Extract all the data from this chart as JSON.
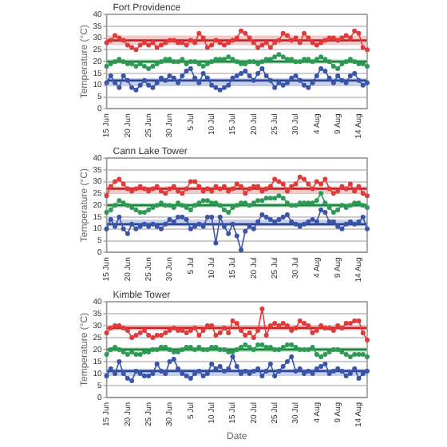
{
  "chart_data": [
    {
      "type": "line",
      "title": "Fort Providence",
      "ylabel": "Temperature (°C)",
      "ylim": [
        0,
        40
      ],
      "yticks": [
        0,
        5,
        10,
        15,
        20,
        25,
        30,
        35,
        40
      ],
      "grid": "y",
      "marker": "circle",
      "legend": false,
      "categories": [
        "15 Jun",
        null,
        null,
        null,
        null,
        "20 Jun",
        null,
        null,
        null,
        null,
        "25 Jun",
        null,
        null,
        null,
        null,
        "30 Jun",
        null,
        null,
        null,
        null,
        "5 Jul",
        null,
        null,
        null,
        null,
        "10 Jul",
        null,
        null,
        null,
        null,
        "15 Jul",
        null,
        null,
        null,
        null,
        "20 Jul",
        null,
        null,
        null,
        null,
        "25 Jul",
        null,
        null,
        null,
        null,
        "30 Jul",
        null,
        null,
        null,
        null,
        "4 Aug",
        null,
        null,
        null,
        null,
        "9 Aug",
        null,
        null,
        null,
        null,
        "14 Aug",
        null,
        null
      ],
      "series": [
        {
          "color": "#e03a3a",
          "values": [
            28,
            29,
            31,
            30,
            29,
            27,
            26,
            25,
            27,
            28,
            27,
            28,
            26,
            27,
            28,
            29,
            29,
            28,
            28,
            27,
            29,
            28,
            32,
            30,
            26,
            27,
            29,
            28,
            27,
            28,
            29,
            30,
            33,
            32,
            30,
            28,
            26,
            27,
            28,
            26,
            28,
            29,
            32,
            31,
            29,
            30,
            28,
            32,
            30,
            28,
            27,
            28,
            29,
            30,
            30,
            29,
            30,
            31,
            30,
            33,
            32,
            26,
            25
          ]
        },
        {
          "color": "#2e9a55",
          "values": [
            18,
            19,
            20,
            21,
            20,
            19,
            19,
            18,
            19,
            18,
            17,
            18,
            19,
            20,
            21,
            21,
            20,
            20,
            21,
            19,
            20,
            20,
            19,
            18,
            19,
            20,
            21,
            21,
            21,
            22,
            21,
            20,
            19,
            19,
            20,
            20,
            19,
            20,
            21,
            21,
            22,
            23,
            22,
            21,
            21,
            20,
            20,
            21,
            21,
            20,
            21,
            22,
            21,
            20,
            18,
            17,
            19,
            20,
            21,
            20,
            19,
            19,
            18
          ]
        },
        {
          "color": "#3a55a8",
          "values": [
            11,
            14,
            11,
            9,
            14,
            12,
            9,
            8,
            10,
            12,
            10,
            9,
            11,
            13,
            12,
            14,
            13,
            11,
            14,
            16,
            17,
            13,
            11,
            15,
            13,
            10,
            9,
            8,
            9,
            10,
            13,
            14,
            15,
            16,
            14,
            12,
            15,
            17,
            14,
            12,
            9,
            11,
            10,
            11,
            13,
            14,
            12,
            10,
            9,
            11,
            14,
            17,
            16,
            13,
            11,
            14,
            12,
            11,
            14,
            15,
            12,
            10,
            11
          ]
        }
      ],
      "ref_lines": [
        {
          "axis": "y",
          "value": 29,
          "color": "#d02020"
        },
        {
          "axis": "y",
          "value": 20,
          "color": "#1f8040"
        },
        {
          "axis": "y",
          "value": 12,
          "color": "#2a4595"
        }
      ],
      "bands": [
        {
          "axis": "y",
          "from": 27,
          "to": 31,
          "color": "#f4c8c8"
        },
        {
          "axis": "y",
          "from": 19,
          "to": 21,
          "color": "#c8e8d0"
        },
        {
          "axis": "y",
          "from": 10,
          "to": 13,
          "color": "#c8d0ec"
        }
      ]
    },
    {
      "type": "line",
      "title": "Cann Lake Tower",
      "ylabel": "Temperature (°C)",
      "ylim": [
        0,
        40
      ],
      "yticks": [
        0,
        5,
        10,
        15,
        20,
        25,
        30,
        35,
        40
      ],
      "grid": "y",
      "marker": "circle",
      "legend": false,
      "categories": [
        "15 Jun",
        null,
        null,
        null,
        null,
        "20 Jun",
        null,
        null,
        null,
        null,
        "25 Jun",
        null,
        null,
        null,
        null,
        "30 Jun",
        null,
        null,
        null,
        null,
        "5 Jul",
        null,
        null,
        null,
        null,
        "10 Jul",
        null,
        null,
        null,
        null,
        "15 Jul",
        null,
        null,
        null,
        null,
        "20 Jul",
        null,
        null,
        null,
        null,
        "25 Jul",
        null,
        null,
        null,
        null,
        "30 Jul",
        null,
        null,
        null,
        null,
        "4 Aug",
        null,
        null,
        null,
        null,
        "9 Aug",
        null,
        null,
        null,
        null,
        "14 Aug",
        null,
        null
      ],
      "series": [
        {
          "color": "#e03a3a",
          "values": [
            24,
            28,
            30,
            31,
            29,
            27,
            26,
            27,
            28,
            27,
            26,
            27,
            28,
            26,
            25,
            27,
            28,
            26,
            25,
            27,
            30,
            30,
            28,
            26,
            27,
            26,
            28,
            27,
            28,
            26,
            27,
            29,
            28,
            25,
            27,
            28,
            28,
            26,
            27,
            28,
            31,
            30,
            29,
            26,
            28,
            29,
            32,
            31,
            29,
            27,
            30,
            29,
            31,
            27,
            25,
            26,
            28,
            27,
            29,
            26,
            28,
            25,
            24
          ]
        },
        {
          "color": "#2e9a55",
          "values": [
            17,
            18,
            20,
            22,
            21,
            20,
            19,
            18,
            17,
            17,
            18,
            19,
            20,
            21,
            20,
            20,
            19,
            21,
            20,
            19,
            18,
            20,
            21,
            22,
            22,
            21,
            21,
            20,
            18,
            17,
            19,
            20,
            21,
            21,
            20,
            21,
            22,
            22,
            23,
            23,
            23,
            24,
            23,
            21,
            20,
            20,
            21,
            21,
            21,
            21,
            22,
            25,
            21,
            19,
            17,
            18,
            20,
            19,
            20,
            21,
            21,
            20,
            19
          ]
        },
        {
          "color": "#3a55a8",
          "values": [
            10,
            14,
            11,
            15,
            10,
            8,
            12,
            10,
            11,
            12,
            11,
            12,
            11,
            10,
            12,
            14,
            13,
            15,
            15,
            14,
            10,
            11,
            12,
            11,
            15,
            15,
            4,
            15,
            11,
            8,
            12,
            7,
            1,
            9,
            11,
            10,
            13,
            16,
            15,
            14,
            13,
            14,
            15,
            16,
            13,
            12,
            11,
            12,
            13,
            14,
            13,
            18,
            17,
            13,
            13,
            11,
            10,
            12,
            13,
            12,
            13,
            15,
            10
          ]
        }
      ],
      "ref_lines": [
        {
          "axis": "y",
          "value": 27,
          "color": "#d02020"
        },
        {
          "axis": "y",
          "value": 20,
          "color": "#1f8040"
        },
        {
          "axis": "y",
          "value": 12,
          "color": "#2a4595"
        }
      ],
      "bands": [
        {
          "axis": "y",
          "from": 25,
          "to": 28,
          "color": "#f4c8c8"
        },
        {
          "axis": "y",
          "from": 19,
          "to": 21,
          "color": "#c8e8d0"
        },
        {
          "axis": "y",
          "from": 11,
          "to": 14,
          "color": "#c8d0ec"
        }
      ]
    },
    {
      "type": "line",
      "title": "Kimble Tower",
      "xlabel": "Date",
      "ylabel": "Temperature (°C)",
      "ylim": [
        0,
        40
      ],
      "yticks": [
        0,
        5,
        10,
        15,
        20,
        25,
        30,
        35,
        40
      ],
      "grid": "y",
      "marker": "circle",
      "legend": false,
      "categories": [
        "15 Jun",
        null,
        null,
        null,
        null,
        "20 Jun",
        null,
        null,
        null,
        null,
        "25 Jun",
        null,
        null,
        null,
        null,
        "30 Jun",
        null,
        null,
        null,
        null,
        "5 Jul",
        null,
        null,
        null,
        null,
        "10 Jul",
        null,
        null,
        null,
        null,
        "15 Jul",
        null,
        null,
        null,
        null,
        "20 Jul",
        null,
        null,
        null,
        null,
        "25 Jul",
        null,
        null,
        null,
        null,
        "30 Jul",
        null,
        null,
        null,
        null,
        "4 Aug",
        null,
        null,
        null,
        null,
        "9 Aug",
        null,
        null,
        null,
        null,
        "14 Aug",
        null,
        null
      ],
      "series": [
        {
          "color": "#e03a3a",
          "values": [
            27,
            29,
            30,
            30,
            29,
            28,
            25,
            26,
            27,
            28,
            26,
            25,
            26,
            26,
            27,
            28,
            29,
            28,
            28,
            27,
            28,
            29,
            26,
            28,
            30,
            30,
            26,
            27,
            29,
            27,
            32,
            31,
            28,
            26,
            27,
            25,
            28,
            37,
            26,
            30,
            31,
            30,
            31,
            30,
            28,
            29,
            32,
            31,
            30,
            27,
            28,
            30,
            29,
            29,
            28,
            30,
            29,
            31,
            31,
            32,
            32,
            27,
            24
          ]
        },
        {
          "color": "#2e9a55",
          "values": [
            18,
            20,
            21,
            20,
            19,
            18,
            19,
            18,
            18,
            19,
            19,
            20,
            20,
            21,
            21,
            20,
            19,
            19,
            20,
            21,
            21,
            20,
            21,
            20,
            20,
            21,
            21,
            20,
            20,
            19,
            19,
            20,
            21,
            22,
            21,
            20,
            22,
            22,
            21,
            21,
            20,
            20,
            21,
            22,
            22,
            21,
            20,
            20,
            20,
            21,
            18,
            17,
            18,
            19,
            20,
            20,
            19,
            18,
            17,
            18,
            18,
            18,
            17
          ]
        },
        {
          "color": "#3a55a8",
          "values": [
            9,
            12,
            10,
            15,
            10,
            8,
            7,
            11,
            10,
            9,
            9,
            10,
            14,
            11,
            10,
            15,
            16,
            12,
            10,
            9,
            8,
            10,
            11,
            9,
            10,
            14,
            12,
            13,
            11,
            12,
            17,
            13,
            10,
            11,
            10,
            11,
            12,
            9,
            11,
            14,
            9,
            11,
            13,
            15,
            17,
            11,
            12,
            10,
            11,
            10,
            12,
            13,
            14,
            10,
            11,
            12,
            11,
            9,
            10,
            12,
            8,
            10,
            11
          ]
        }
      ],
      "ref_lines": [
        {
          "axis": "y",
          "value": 29,
          "color": "#d02020"
        },
        {
          "axis": "y",
          "value": 20,
          "color": "#1f8040"
        },
        {
          "axis": "y",
          "value": 11,
          "color": "#2a4595"
        }
      ],
      "bands": [
        {
          "axis": "y",
          "from": 28,
          "to": 30,
          "color": "#f4c8c8"
        },
        {
          "axis": "y",
          "from": 19,
          "to": 21,
          "color": "#c8e8d0"
        },
        {
          "axis": "y",
          "from": 9,
          "to": 12,
          "color": "#c8d0ec"
        }
      ]
    }
  ]
}
